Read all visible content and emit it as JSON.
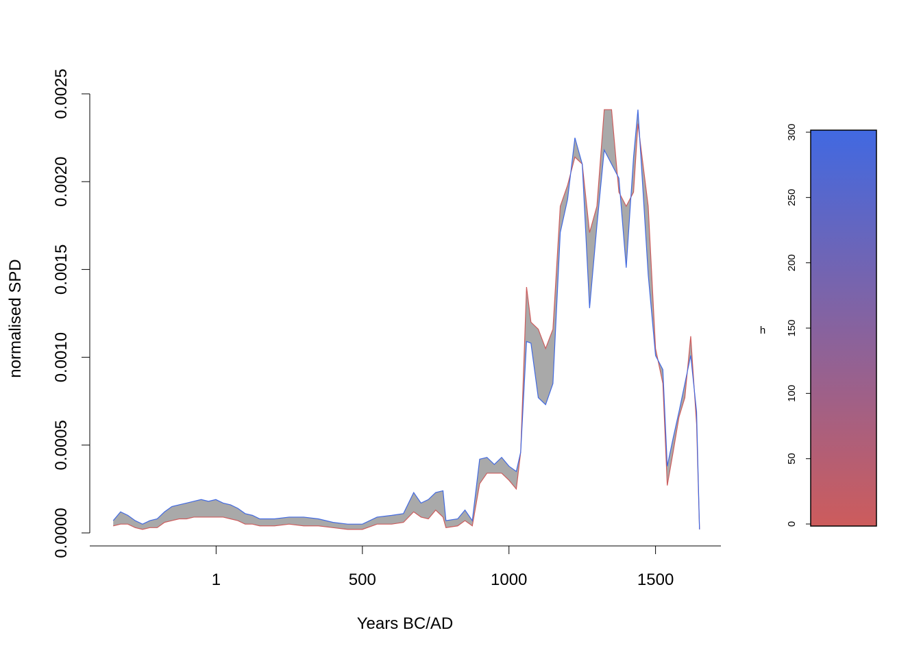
{
  "chart_data": {
    "type": "band-line",
    "x_label": "Years BC/AD",
    "y_label": "normalised SPD",
    "x": [
      -350,
      -325,
      -300,
      -275,
      -250,
      -225,
      -200,
      -175,
      -150,
      -125,
      -100,
      -75,
      -50,
      -25,
      0,
      25,
      50,
      75,
      100,
      125,
      150,
      200,
      250,
      300,
      350,
      400,
      450,
      500,
      550,
      600,
      640,
      675,
      700,
      725,
      750,
      775,
      785,
      825,
      850,
      875,
      900,
      925,
      950,
      975,
      1000,
      1025,
      1040,
      1060,
      1075,
      1100,
      1125,
      1150,
      1175,
      1200,
      1225,
      1250,
      1275,
      1300,
      1325,
      1350,
      1375,
      1400,
      1425,
      1440,
      1475,
      1500,
      1525,
      1540,
      1560,
      1580,
      1600,
      1620,
      1640,
      1650
    ],
    "series": [
      {
        "color": "#cd5c5c",
        "values": [
          4e-05,
          5e-05,
          5e-05,
          3e-05,
          2e-05,
          3e-05,
          3e-05,
          6e-05,
          7e-05,
          8e-05,
          8e-05,
          9e-05,
          9e-05,
          9e-05,
          9e-05,
          9e-05,
          8e-05,
          7e-05,
          5e-05,
          5e-05,
          4e-05,
          4e-05,
          5e-05,
          4e-05,
          4e-05,
          3e-05,
          2e-05,
          2e-05,
          5e-05,
          5e-05,
          6e-05,
          0.00012,
          9e-05,
          8e-05,
          0.00013,
          9e-05,
          3e-05,
          4e-05,
          7e-05,
          4e-05,
          0.00028,
          0.00034,
          0.00034,
          0.00034,
          0.0003,
          0.00025,
          0.00046,
          0.0014,
          0.0012,
          0.00116,
          0.00105,
          0.00116,
          0.00186,
          0.00198,
          0.00214,
          0.0021,
          0.00171,
          0.00186,
          0.00241,
          0.00241,
          0.00194,
          0.00186,
          0.00194,
          0.00233,
          0.00186,
          0.00105,
          0.00085,
          0.00027,
          0.00046,
          0.00066,
          0.00077,
          0.00112,
          0.00062,
          2e-05
        ]
      },
      {
        "color": "#4169e1",
        "values": [
          7e-05,
          0.00012,
          0.0001,
          7e-05,
          5e-05,
          7e-05,
          8e-05,
          0.00012,
          0.00015,
          0.00016,
          0.00017,
          0.00018,
          0.00019,
          0.00018,
          0.00019,
          0.00017,
          0.00016,
          0.00014,
          0.00011,
          0.0001,
          8e-05,
          8e-05,
          9e-05,
          9e-05,
          8e-05,
          6e-05,
          5e-05,
          5e-05,
          9e-05,
          0.0001,
          0.00011,
          0.00023,
          0.00017,
          0.00019,
          0.00023,
          0.00024,
          7e-05,
          8e-05,
          0.00013,
          7e-05,
          0.00042,
          0.00043,
          0.00039,
          0.00043,
          0.00038,
          0.00035,
          0.00046,
          0.00109,
          0.00108,
          0.00077,
          0.00073,
          0.00085,
          0.00171,
          0.0019,
          0.00225,
          0.0021,
          0.00128,
          0.00175,
          0.00218,
          0.0021,
          0.00202,
          0.00151,
          0.00214,
          0.00241,
          0.00147,
          0.00101,
          0.00093,
          0.00038,
          0.00054,
          0.00069,
          0.00085,
          0.00101,
          0.00069,
          2e-05
        ]
      }
    ],
    "band_color": "#a9a9a9",
    "xlim": [
      -430,
      1723
    ],
    "xticks": [
      1,
      500,
      1000,
      1500
    ],
    "ylim": [
      0,
      0.0025
    ],
    "yticks": [
      {
        "value": 0,
        "label": "0.0000"
      },
      {
        "value": 0.0005,
        "label": "0.0005"
      },
      {
        "value": 0.001,
        "label": "0.0010"
      },
      {
        "value": 0.0015,
        "label": "0.0015"
      },
      {
        "value": 0.002,
        "label": "0.0020"
      },
      {
        "value": 0.0025,
        "label": "0.0025"
      }
    ],
    "colorbar": {
      "label": "h",
      "lim": [
        0,
        300
      ],
      "ticks": [
        0,
        50,
        100,
        150,
        200,
        250,
        300
      ],
      "colors": [
        "#cd5c5c",
        "#4169e1"
      ]
    }
  }
}
